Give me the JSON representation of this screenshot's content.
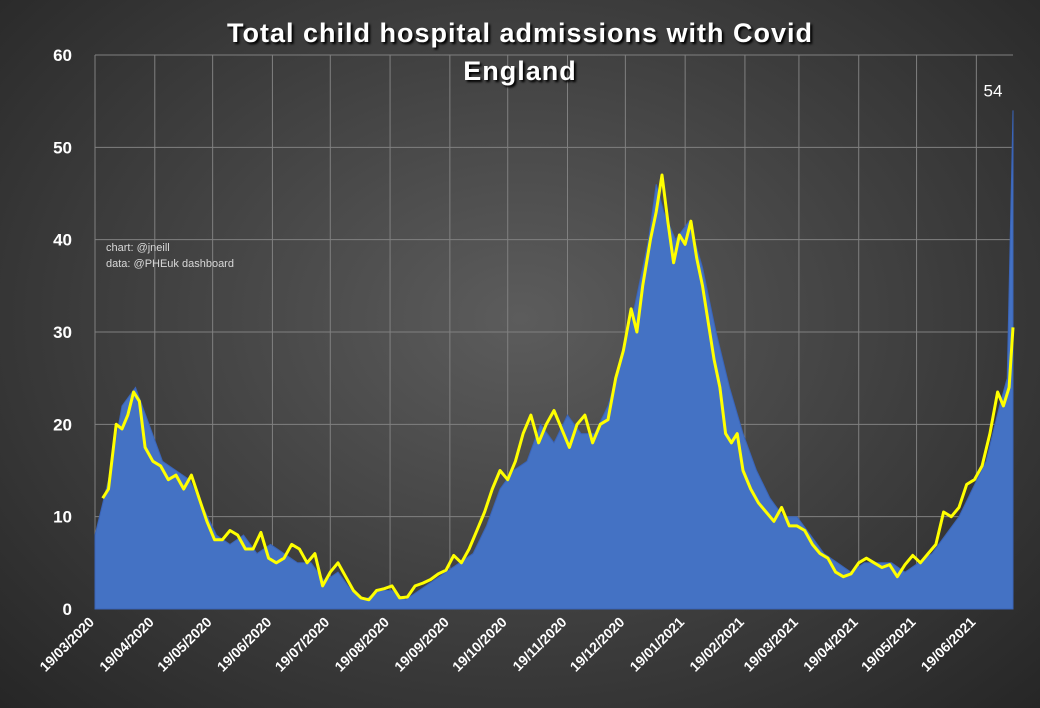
{
  "chart_data": {
    "type": "area",
    "title": "Total child hospital admissions with Covid",
    "subtitle": "England",
    "credits": [
      "chart: @jneill",
      "data: @PHEuk dashboard"
    ],
    "xlabel": "",
    "ylabel": "",
    "ylim": [
      0,
      60
    ],
    "yticks": [
      0,
      10,
      20,
      30,
      40,
      50,
      60
    ],
    "x_tick_labels": [
      "19/03/2020",
      "19/04/2020",
      "19/05/2020",
      "19/06/2020",
      "19/07/2020",
      "19/08/2020",
      "19/09/2020",
      "19/10/2020",
      "19/11/2020",
      "19/12/2020",
      "19/01/2021",
      "19/02/2021",
      "19/03/2021",
      "19/04/2021",
      "19/05/2021",
      "19/06/2021"
    ],
    "x_start": "19/03/2020",
    "x_end": "08/07/2021",
    "grid": true,
    "last_value_annotation": "54",
    "colors": {
      "area": "#4472c4",
      "line": "#ffff00",
      "grid": "#808080",
      "text": "#ffffff"
    },
    "series": [
      {
        "name": "",
        "kind": "daily",
        "points": [
          [
            "19/03/2020",
            8
          ],
          [
            "26/03/2020",
            14
          ],
          [
            "02/04/2020",
            22
          ],
          [
            "09/04/2020",
            24
          ],
          [
            "16/04/2020",
            20
          ],
          [
            "23/04/2020",
            16
          ],
          [
            "30/04/2020",
            15
          ],
          [
            "07/05/2020",
            14
          ],
          [
            "14/05/2020",
            11
          ],
          [
            "21/05/2020",
            8
          ],
          [
            "28/05/2020",
            7
          ],
          [
            "04/06/2020",
            8
          ],
          [
            "11/06/2020",
            6
          ],
          [
            "18/06/2020",
            7
          ],
          [
            "25/06/2020",
            6
          ],
          [
            "02/07/2020",
            5
          ],
          [
            "09/07/2020",
            5
          ],
          [
            "16/07/2020",
            3
          ],
          [
            "23/07/2020",
            4
          ],
          [
            "30/07/2020",
            2
          ],
          [
            "06/08/2020",
            1
          ],
          [
            "13/08/2020",
            2
          ],
          [
            "20/08/2020",
            2
          ],
          [
            "27/08/2020",
            1
          ],
          [
            "03/09/2020",
            2
          ],
          [
            "10/09/2020",
            3
          ],
          [
            "17/09/2020",
            4
          ],
          [
            "24/09/2020",
            5
          ],
          [
            "01/10/2020",
            6
          ],
          [
            "08/10/2020",
            9
          ],
          [
            "15/10/2020",
            13
          ],
          [
            "22/10/2020",
            15
          ],
          [
            "29/10/2020",
            16
          ],
          [
            "05/11/2020",
            20
          ],
          [
            "12/11/2020",
            18
          ],
          [
            "19/11/2020",
            21
          ],
          [
            "26/11/2020",
            19
          ],
          [
            "03/12/2020",
            19
          ],
          [
            "10/12/2020",
            22
          ],
          [
            "17/12/2020",
            27
          ],
          [
            "24/12/2020",
            33
          ],
          [
            "31/12/2020",
            40
          ],
          [
            "04/01/2021",
            46
          ],
          [
            "08/01/2021",
            43
          ],
          [
            "14/01/2021",
            40
          ],
          [
            "21/01/2021",
            42
          ],
          [
            "28/01/2021",
            37
          ],
          [
            "04/02/2021",
            30
          ],
          [
            "11/02/2021",
            24
          ],
          [
            "18/02/2021",
            19
          ],
          [
            "25/02/2021",
            15
          ],
          [
            "04/03/2021",
            12
          ],
          [
            "11/03/2021",
            10
          ],
          [
            "18/03/2021",
            10
          ],
          [
            "25/03/2021",
            8
          ],
          [
            "01/04/2021",
            6
          ],
          [
            "08/04/2021",
            5
          ],
          [
            "15/04/2021",
            4
          ],
          [
            "22/04/2021",
            5
          ],
          [
            "29/04/2021",
            5
          ],
          [
            "06/05/2021",
            5
          ],
          [
            "13/05/2021",
            4
          ],
          [
            "20/05/2021",
            5
          ],
          [
            "27/05/2021",
            6
          ],
          [
            "03/06/2021",
            8
          ],
          [
            "10/06/2021",
            10
          ],
          [
            "17/06/2021",
            13
          ],
          [
            "24/06/2021",
            16
          ],
          [
            "01/07/2021",
            22
          ],
          [
            "05/07/2021",
            25
          ],
          [
            "08/07/2021",
            54
          ]
        ]
      },
      {
        "name": "",
        "kind": "7-day average",
        "points": [
          [
            "23/03/2020",
            12
          ],
          [
            "26/03/2020",
            13
          ],
          [
            "30/03/2020",
            20
          ],
          [
            "02/04/2020",
            19.5
          ],
          [
            "05/04/2020",
            21
          ],
          [
            "08/04/2020",
            23.5
          ],
          [
            "11/04/2020",
            22.5
          ],
          [
            "14/04/2020",
            17.5
          ],
          [
            "18/04/2020",
            16
          ],
          [
            "22/04/2020",
            15.5
          ],
          [
            "26/04/2020",
            14
          ],
          [
            "30/04/2020",
            14.5
          ],
          [
            "04/05/2020",
            13
          ],
          [
            "08/05/2020",
            14.5
          ],
          [
            "12/05/2020",
            12
          ],
          [
            "16/05/2020",
            9.5
          ],
          [
            "20/05/2020",
            7.5
          ],
          [
            "24/05/2020",
            7.5
          ],
          [
            "28/05/2020",
            8.5
          ],
          [
            "01/06/2020",
            8
          ],
          [
            "05/06/2020",
            6.5
          ],
          [
            "09/06/2020",
            6.5
          ],
          [
            "13/06/2020",
            8.3
          ],
          [
            "17/06/2020",
            5.5
          ],
          [
            "21/06/2020",
            5
          ],
          [
            "25/06/2020",
            5.5
          ],
          [
            "29/06/2020",
            7
          ],
          [
            "03/07/2020",
            6.5
          ],
          [
            "07/07/2020",
            5
          ],
          [
            "11/07/2020",
            6
          ],
          [
            "15/07/2020",
            2.5
          ],
          [
            "19/07/2020",
            4
          ],
          [
            "23/07/2020",
            5
          ],
          [
            "27/07/2020",
            3.5
          ],
          [
            "31/07/2020",
            2
          ],
          [
            "04/08/2020",
            1.2
          ],
          [
            "08/08/2020",
            1
          ],
          [
            "12/08/2020",
            2
          ],
          [
            "16/08/2020",
            2.2
          ],
          [
            "20/08/2020",
            2.5
          ],
          [
            "24/08/2020",
            1.2
          ],
          [
            "28/08/2020",
            1.3
          ],
          [
            "01/09/2020",
            2.5
          ],
          [
            "05/09/2020",
            2.8
          ],
          [
            "09/09/2020",
            3.2
          ],
          [
            "13/09/2020",
            3.8
          ],
          [
            "17/09/2020",
            4.2
          ],
          [
            "21/09/2020",
            5.8
          ],
          [
            "25/09/2020",
            5
          ],
          [
            "29/09/2020",
            6.5
          ],
          [
            "03/10/2020",
            8.5
          ],
          [
            "07/10/2020",
            10.5
          ],
          [
            "11/10/2020",
            13
          ],
          [
            "15/10/2020",
            15
          ],
          [
            "19/10/2020",
            14
          ],
          [
            "23/10/2020",
            16
          ],
          [
            "27/10/2020",
            19
          ],
          [
            "31/10/2020",
            21
          ],
          [
            "04/11/2020",
            18
          ],
          [
            "08/11/2020",
            20
          ],
          [
            "12/11/2020",
            21.5
          ],
          [
            "16/11/2020",
            19.5
          ],
          [
            "20/11/2020",
            17.5
          ],
          [
            "24/11/2020",
            20
          ],
          [
            "28/11/2020",
            21
          ],
          [
            "02/12/2020",
            18
          ],
          [
            "06/12/2020",
            20
          ],
          [
            "10/12/2020",
            20.5
          ],
          [
            "14/12/2020",
            25
          ],
          [
            "18/12/2020",
            28
          ],
          [
            "22/12/2020",
            32.5
          ],
          [
            "25/12/2020",
            30
          ],
          [
            "28/12/2020",
            35
          ],
          [
            "01/01/2021",
            40
          ],
          [
            "04/01/2021",
            43
          ],
          [
            "07/01/2021",
            47
          ],
          [
            "10/01/2021",
            42
          ],
          [
            "13/01/2021",
            37.5
          ],
          [
            "16/01/2021",
            40.5
          ],
          [
            "19/01/2021",
            39.5
          ],
          [
            "22/01/2021",
            42
          ],
          [
            "25/01/2021",
            38
          ],
          [
            "28/01/2021",
            35
          ],
          [
            "31/01/2021",
            31
          ],
          [
            "03/02/2021",
            27
          ],
          [
            "06/02/2021",
            24
          ],
          [
            "09/02/2021",
            19
          ],
          [
            "12/02/2021",
            18
          ],
          [
            "15/02/2021",
            19
          ],
          [
            "18/02/2021",
            15
          ],
          [
            "22/02/2021",
            13
          ],
          [
            "26/02/2021",
            11.5
          ],
          [
            "02/03/2021",
            10.5
          ],
          [
            "06/03/2021",
            9.5
          ],
          [
            "10/03/2021",
            11
          ],
          [
            "14/03/2021",
            9
          ],
          [
            "18/03/2021",
            9
          ],
          [
            "22/03/2021",
            8.5
          ],
          [
            "26/03/2021",
            7
          ],
          [
            "30/03/2021",
            6
          ],
          [
            "03/04/2021",
            5.5
          ],
          [
            "07/04/2021",
            4
          ],
          [
            "11/04/2021",
            3.5
          ],
          [
            "15/04/2021",
            3.8
          ],
          [
            "19/04/2021",
            5
          ],
          [
            "23/04/2021",
            5.5
          ],
          [
            "27/04/2021",
            5
          ],
          [
            "01/05/2021",
            4.5
          ],
          [
            "05/05/2021",
            4.8
          ],
          [
            "09/05/2021",
            3.5
          ],
          [
            "13/05/2021",
            4.8
          ],
          [
            "17/05/2021",
            5.8
          ],
          [
            "21/05/2021",
            5
          ],
          [
            "25/05/2021",
            6
          ],
          [
            "29/05/2021",
            7
          ],
          [
            "02/06/2021",
            10.5
          ],
          [
            "06/06/2021",
            10
          ],
          [
            "10/06/2021",
            11
          ],
          [
            "14/06/2021",
            13.5
          ],
          [
            "18/06/2021",
            14
          ],
          [
            "22/06/2021",
            15.5
          ],
          [
            "26/06/2021",
            19
          ],
          [
            "30/06/2021",
            23.5
          ],
          [
            "03/07/2021",
            22
          ],
          [
            "06/07/2021",
            24
          ],
          [
            "08/07/2021",
            30.5
          ]
        ]
      }
    ]
  }
}
